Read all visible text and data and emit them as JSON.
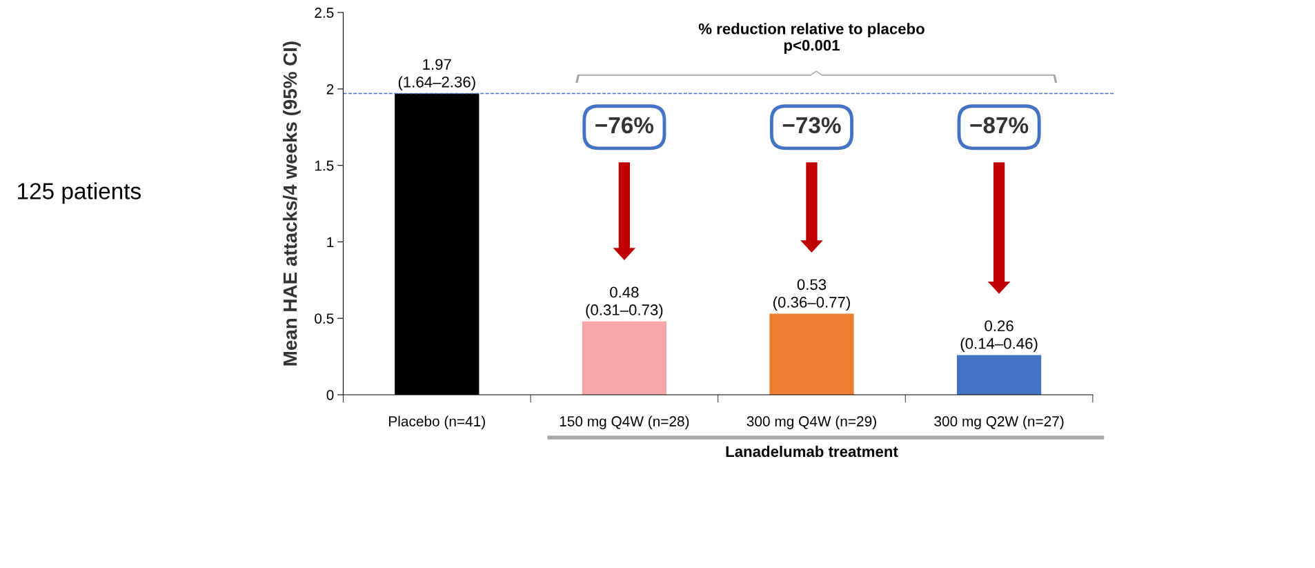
{
  "chart_data": {
    "type": "bar",
    "categories": [
      "Placebo (n=41)",
      "150 mg Q4W (n=28)",
      "300 mg Q4W (n=29)",
      "300 mg Q2W (n=27)"
    ],
    "values": [
      1.97,
      0.48,
      0.53,
      0.26
    ],
    "colors": [
      "#000000",
      "#f4a6a8",
      "#ed7d31",
      "#4472c4"
    ],
    "value_labels": [
      "1.97\n(1.64–2.36)",
      "0.48\n(0.31–0.73)",
      "0.53\n(0.36–0.77)",
      "0.26\n(0.14–0.46)"
    ],
    "ylabel": "Mean HAE attacks/4 weeks (95% CI)",
    "ylim": [
      0,
      2.5
    ],
    "yticks": [
      0,
      0.5,
      1,
      1.5,
      2,
      2.5
    ],
    "ref_lines": [
      {
        "axis": "y",
        "value": 1.97,
        "color": "#4472c4",
        "line_style": "dashed"
      }
    ],
    "annotations": [
      "% reduction relative to placebo\np<0.001",
      "−76%",
      "−73%",
      "−87%",
      "Lanadelumab treatment",
      "125 patients"
    ],
    "grid": false,
    "legend": false
  }
}
